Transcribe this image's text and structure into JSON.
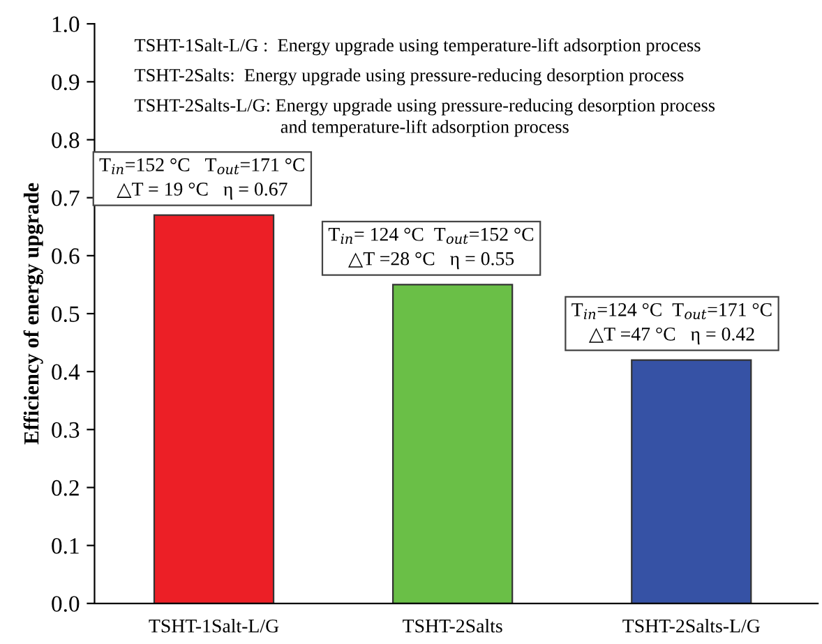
{
  "chart_data": {
    "type": "bar",
    "ylabel": "Efficiency of energy upgrade",
    "categories": [
      "TSHT-1Salt-L/G",
      "TSHT-2Salts",
      "TSHT-2Salts-L/G"
    ],
    "values": [
      0.67,
      0.55,
      0.42
    ],
    "colors": [
      "#ec1f26",
      "#6abf47",
      "#3652a5"
    ],
    "ylim": [
      0.0,
      1.0
    ],
    "yticks": [
      {
        "value": 0,
        "label": "0.0"
      },
      0.1,
      0.2,
      0.3,
      0.4,
      0.5,
      0.6,
      0.7,
      0.8,
      0.9,
      {
        "value": 1,
        "label": "1.0"
      }
    ],
    "grid": false,
    "legend": false,
    "annotations": [
      "TSHT-1Salt-L/G :  Energy upgrade using temperature-lift adsorption process",
      "TSHT-2Salts:  Energy upgrade using pressure-reducing desorption process",
      "TSHT-2Salts-L/G: Energy upgrade using pressure-reducing desorption process\nand temperature-lift adsorption process",
      {
        "text": "T$_{in}$=152 °C   T$_{out}$=171 °C\n△T = 19 °C   η = 0.67",
        "x": "TSHT-1Salt-L/G",
        "y": 0.67
      },
      {
        "text": "T$_{in}$= 124 °C  T$_{out}$=152 °C\n△T =28 °C   η = 0.55",
        "x": "TSHT-2Salts",
        "y": 0.55
      },
      {
        "text": "T$_{in}$=124 °C  T$_{out}$=171 °C\n△T =47 °C   η = 0.42",
        "x": "TSHT-2Salts-L/G",
        "y": 0.42
      }
    ]
  }
}
